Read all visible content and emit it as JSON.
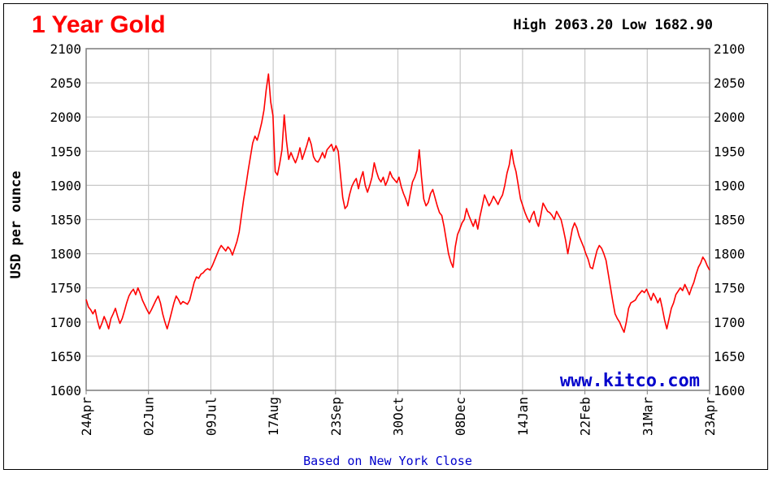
{
  "chart_data": {
    "type": "line",
    "title": "1 Year Gold",
    "high_low_text": "High 2063.20 Low 1682.90",
    "ylabel": "USD per ounce",
    "xlabel": "Based on New York Close",
    "watermark": "www.kitco.com",
    "ylim": [
      1600,
      2100
    ],
    "yticks": [
      1600,
      1650,
      1700,
      1750,
      1800,
      1850,
      1900,
      1950,
      2000,
      2050,
      2100
    ],
    "xticks": [
      "24Apr",
      "02Jun",
      "09Jul",
      "17Aug",
      "23Sep",
      "30Oct",
      "08Dec",
      "14Jan",
      "22Feb",
      "31Mar",
      "23Apr"
    ],
    "grid": true,
    "colors": {
      "line": "#ff0000",
      "title": "#ff0000",
      "watermark": "#0000cc",
      "xlabel": "#0000cc",
      "grid": "#c8c8c8",
      "axis": "#808080"
    },
    "series": [
      {
        "values": [
          1733,
          1722,
          1718,
          1712,
          1718,
          1702,
          1690,
          1698,
          1708,
          1700,
          1690,
          1705,
          1712,
          1720,
          1708,
          1698,
          1705,
          1716,
          1728,
          1738,
          1744,
          1748,
          1740,
          1750,
          1742,
          1732,
          1725,
          1718,
          1712,
          1718,
          1725,
          1732,
          1738,
          1728,
          1712,
          1700,
          1690,
          1702,
          1715,
          1728,
          1738,
          1733,
          1726,
          1730,
          1728,
          1726,
          1732,
          1745,
          1758,
          1766,
          1764,
          1770,
          1772,
          1776,
          1778,
          1776,
          1782,
          1790,
          1798,
          1806,
          1812,
          1808,
          1804,
          1810,
          1806,
          1798,
          1808,
          1818,
          1832,
          1856,
          1880,
          1900,
          1922,
          1942,
          1962,
          1972,
          1966,
          1978,
          1992,
          2010,
          2040,
          2063,
          2022,
          2002,
          1920,
          1915,
          1932,
          1952,
          2003,
          1965,
          1938,
          1948,
          1940,
          1933,
          1942,
          1955,
          1938,
          1948,
          1958,
          1970,
          1960,
          1942,
          1936,
          1934,
          1940,
          1948,
          1940,
          1952,
          1956,
          1960,
          1950,
          1958,
          1950,
          1915,
          1882,
          1866,
          1870,
          1886,
          1898,
          1905,
          1910,
          1895,
          1910,
          1920,
          1900,
          1890,
          1900,
          1912,
          1933,
          1920,
          1910,
          1905,
          1912,
          1900,
          1908,
          1920,
          1912,
          1908,
          1904,
          1912,
          1898,
          1888,
          1880,
          1870,
          1888,
          1905,
          1912,
          1922,
          1952,
          1912,
          1880,
          1870,
          1875,
          1888,
          1894,
          1882,
          1870,
          1860,
          1856,
          1840,
          1820,
          1800,
          1788,
          1780,
          1810,
          1828,
          1836,
          1845,
          1850,
          1866,
          1856,
          1848,
          1840,
          1850,
          1836,
          1855,
          1870,
          1886,
          1878,
          1870,
          1876,
          1884,
          1878,
          1872,
          1880,
          1886,
          1900,
          1918,
          1930,
          1952,
          1932,
          1920,
          1900,
          1880,
          1870,
          1860,
          1852,
          1846,
          1856,
          1862,
          1848,
          1840,
          1856,
          1874,
          1868,
          1862,
          1860,
          1856,
          1850,
          1862,
          1856,
          1850,
          1836,
          1820,
          1800,
          1818,
          1836,
          1845,
          1838,
          1826,
          1818,
          1810,
          1800,
          1792,
          1780,
          1778,
          1792,
          1805,
          1812,
          1808,
          1800,
          1790,
          1770,
          1750,
          1730,
          1712,
          1705,
          1700,
          1692,
          1685,
          1700,
          1720,
          1728,
          1730,
          1732,
          1738,
          1742,
          1746,
          1743,
          1748,
          1740,
          1732,
          1742,
          1736,
          1728,
          1735,
          1720,
          1703,
          1690,
          1705,
          1720,
          1728,
          1740,
          1745,
          1750,
          1746,
          1755,
          1748,
          1740,
          1750,
          1758,
          1770,
          1780,
          1786,
          1795,
          1790,
          1782,
          1776
        ]
      }
    ]
  }
}
